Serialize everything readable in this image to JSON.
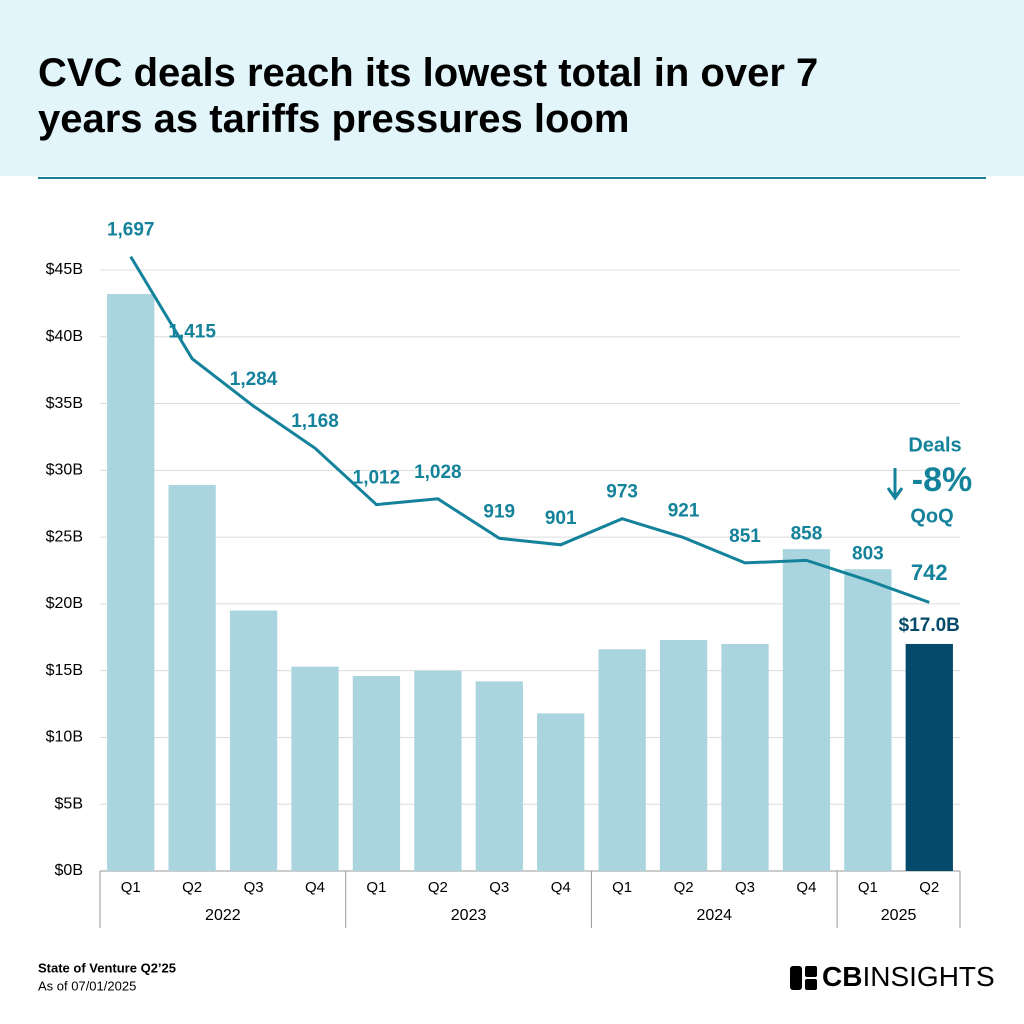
{
  "title": "CVC deals reach its lowest total in over 7 years as tariffs pressures loom",
  "chart_data": {
    "type": "bar_line",
    "categories": [
      "Q1",
      "Q2",
      "Q3",
      "Q4",
      "Q1",
      "Q2",
      "Q3",
      "Q4",
      "Q1",
      "Q2",
      "Q3",
      "Q4",
      "Q1",
      "Q2"
    ],
    "group_labels": [
      "2022",
      "2023",
      "2024",
      "2025"
    ],
    "ylim": [
      0,
      45
    ],
    "yticks": [
      {
        "value": 0,
        "label": "$0B"
      },
      {
        "value": 5,
        "label": "$5B"
      },
      {
        "value": 10,
        "label": "$10B"
      },
      {
        "value": 15,
        "label": "$15B"
      },
      {
        "value": 20,
        "label": "$20B"
      },
      {
        "value": 25,
        "label": "$25B"
      },
      {
        "value": 30,
        "label": "$30B"
      },
      {
        "value": 35,
        "label": "$35B"
      },
      {
        "value": 40,
        "label": "$40B"
      },
      {
        "value": 45,
        "label": "$45B"
      }
    ],
    "y2lim": [
      0,
      1660
    ],
    "grid": true,
    "series": [
      {
        "type": "bar",
        "colors": [
          "#aad5df",
          "#aad5df",
          "#aad5df",
          "#aad5df",
          "#aad5df",
          "#aad5df",
          "#aad5df",
          "#aad5df",
          "#aad5df",
          "#aad5df",
          "#aad5df",
          "#aad5df",
          "#aad5df",
          "#054a6b"
        ],
        "values": [
          43.2,
          28.9,
          19.5,
          15.3,
          14.6,
          15.0,
          14.2,
          11.8,
          16.6,
          17.3,
          17.0,
          24.1,
          22.6,
          17.0
        ],
        "value_labels": [
          null,
          null,
          null,
          null,
          null,
          null,
          null,
          null,
          null,
          null,
          null,
          null,
          null,
          "$17.0B"
        ],
        "label_color": "#054a6b"
      },
      {
        "type": "line",
        "axis": "y2",
        "color": "#13829a",
        "values": [
          1697,
          1415,
          1284,
          1168,
          1012,
          1028,
          919,
          901,
          973,
          921,
          851,
          858,
          803,
          742
        ],
        "value_labels": [
          "1,697",
          "1,415",
          "1,284",
          "1,168",
          "1,012",
          "1,028",
          "919",
          "901",
          "973",
          "921",
          "851",
          "858",
          "803",
          "742"
        ]
      }
    ],
    "annotation": {
      "title": "Deals",
      "change": "-8%",
      "period": "QoQ"
    }
  },
  "footer": {
    "source": "State of Venture Q2’25",
    "date": "As of 07/01/2025",
    "logo_bold": "CB",
    "logo_light": "INSIGHTS"
  }
}
